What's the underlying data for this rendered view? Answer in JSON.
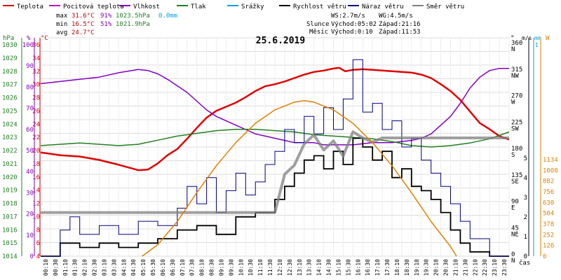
{
  "header": {
    "legend": [
      {
        "label": "Teplota",
        "color": "#e00000"
      },
      {
        "label": "Pocitová teplota",
        "color": "#c000c0"
      },
      {
        "label": "Vlhkost",
        "color": "#8000c0"
      },
      {
        "label": "Tlak",
        "color": "#208020"
      },
      {
        "label": "Srážky",
        "color": "#00a0e0"
      },
      {
        "label": "Rychlost větru",
        "color": "#000000"
      },
      {
        "label": "Náraz větru",
        "color": "#000080"
      },
      {
        "label": "Směr větru",
        "color": "#808080"
      }
    ],
    "stats": {
      "max_label": "max",
      "max_temp": "31.6°C",
      "max_hum": "91%",
      "max_press": "1023.5hPa",
      "max_rain": "0.0mm",
      "min_label": "min",
      "min_temp": "16.5°C",
      "min_hum": "51%",
      "min_press": "1021.9hPa",
      "avg_label": "avg",
      "avg_temp": "24.7°C"
    },
    "wind_info": {
      "ws": "WS:2.7m/s",
      "wg": "WG:4.5m/s"
    },
    "sun_info": {
      "label": "Slunce",
      "rise": "Východ:05:02",
      "set": "Západ:21:16"
    },
    "moon_info": {
      "label": "Měsíc",
      "rise": "Východ:0:10",
      "set": "Západ:11:53"
    }
  },
  "chart_data": {
    "type": "line",
    "title": "25.6.2019",
    "xlabel": "čas",
    "x_ticks": [
      "00:10",
      "00:30",
      "01:10",
      "01:30",
      "02:10",
      "02:30",
      "03:10",
      "03:30",
      "04:10",
      "04:30",
      "05:10",
      "05:30",
      "06:10",
      "06:30",
      "07:10",
      "07:30",
      "08:10",
      "08:30",
      "09:10",
      "09:30",
      "10:10",
      "10:30",
      "11:10",
      "11:30",
      "12:10",
      "12:30",
      "13:10",
      "13:30",
      "14:10",
      "14:30",
      "15:10",
      "15:30",
      "16:10",
      "16:30",
      "17:10",
      "17:30",
      "18:10",
      "18:30",
      "19:10",
      "19:30",
      "20:10",
      "20:30",
      "21:10",
      "21:30",
      "22:10",
      "22:30",
      "23:10",
      "23:30"
    ],
    "axes": {
      "hpa": {
        "label": "hPa",
        "color": "#208020",
        "ticks": [
          "1030",
          "1029",
          "1028",
          "1027",
          "1026",
          "1025",
          "1024",
          "1023",
          "1022",
          "1021",
          "1020",
          "1019",
          "1018",
          "1017",
          "1016",
          "1015",
          "1014"
        ],
        "ylim": [
          1014,
          1030
        ]
      },
      "percent": {
        "label": "%",
        "color": "#8000c0",
        "ticks": [
          "100",
          "90",
          "80",
          "70",
          "60",
          "50",
          "40",
          "30",
          "20",
          "10",
          "0"
        ],
        "ylim": [
          0,
          100
        ]
      },
      "celsius": {
        "label": "°C",
        "color": "#e00000",
        "ticks": [
          "36",
          "34",
          "32",
          "30",
          "28",
          "26",
          "24",
          "22",
          "20",
          "18",
          "16",
          "14",
          "12",
          "10",
          "8",
          "6",
          "4"
        ],
        "ylim": [
          4,
          36
        ]
      },
      "degrees": {
        "label": "°",
        "ticks": [
          {
            "v": 360,
            "t": "360",
            "d": "N"
          },
          {
            "v": 315,
            "t": "315",
            "d": "NW"
          },
          {
            "v": 270,
            "t": "270",
            "d": "W"
          },
          {
            "v": 225,
            "t": "225",
            "d": "SW"
          },
          {
            "v": 180,
            "t": "180",
            "d": "S"
          },
          {
            "v": 135,
            "t": "135",
            "d": "SE"
          },
          {
            "v": 90,
            "t": "90",
            "d": "E"
          },
          {
            "v": 45,
            "t": "45",
            "d": "NE"
          },
          {
            "v": 0,
            "t": "0",
            "d": "N"
          }
        ],
        "ylim": [
          0,
          360
        ]
      },
      "ms": {
        "label": "m/s",
        "ticks": [
          "5",
          "4",
          "3",
          "2",
          "1",
          "0"
        ],
        "ylim": [
          0,
          5
        ]
      },
      "mm": {
        "label": "mm",
        "color": "#00a0e0",
        "ticks": [
          "1"
        ],
        "ylim": [
          0,
          1
        ]
      },
      "wm2": {
        "label": "W",
        "color": "#e08000",
        "ticks": [
          "1134",
          "1008",
          "882",
          "756",
          "630",
          "504",
          "378",
          "252",
          "126",
          "0"
        ],
        "ylim": [
          0,
          1134
        ]
      }
    },
    "series": [
      {
        "name": "Teplota",
        "color": "#e00000",
        "axis": "celsius",
        "points": [
          [
            0,
            19.2
          ],
          [
            1,
            18.8
          ],
          [
            2,
            18.6
          ],
          [
            3,
            18.1
          ],
          [
            4,
            17.4
          ],
          [
            5,
            16.6
          ],
          [
            5.5,
            16.7
          ],
          [
            6,
            17.6
          ],
          [
            6.5,
            18.8
          ],
          [
            7,
            19.7
          ],
          [
            7.5,
            21.2
          ],
          [
            8,
            22.8
          ],
          [
            8.5,
            24.3
          ],
          [
            9,
            25.3
          ],
          [
            9.5,
            25.9
          ],
          [
            10,
            26.5
          ],
          [
            10.5,
            27.3
          ],
          [
            11,
            28.2
          ],
          [
            11.5,
            28.9
          ],
          [
            12,
            29.2
          ],
          [
            12.5,
            29.6
          ],
          [
            13,
            30.1
          ],
          [
            13.5,
            30.6
          ],
          [
            14,
            31.0
          ],
          [
            14.5,
            31.2
          ],
          [
            15,
            31.5
          ],
          [
            15.3,
            31.6
          ],
          [
            15.6,
            31.1
          ],
          [
            16,
            31.3
          ],
          [
            16.5,
            31.4
          ],
          [
            17,
            31.3
          ],
          [
            17.5,
            31.2
          ],
          [
            18,
            31.1
          ],
          [
            18.5,
            31.0
          ],
          [
            19,
            30.9
          ],
          [
            19.5,
            30.6
          ],
          [
            20,
            30.1
          ],
          [
            20.5,
            29.2
          ],
          [
            21,
            28.2
          ],
          [
            21.5,
            26.9
          ],
          [
            22,
            25.2
          ],
          [
            22.5,
            23.5
          ],
          [
            23,
            22.6
          ],
          [
            23.5,
            21.6
          ],
          [
            24,
            21.1
          ]
        ]
      },
      {
        "name": "Vlhkost",
        "color": "#8000c0",
        "axis": "percent",
        "points": [
          [
            0,
            79
          ],
          [
            1,
            80
          ],
          [
            2,
            81
          ],
          [
            3,
            82
          ],
          [
            4,
            84
          ],
          [
            5,
            85.5
          ],
          [
            5.5,
            85
          ],
          [
            6,
            83.5
          ],
          [
            6.5,
            81
          ],
          [
            7,
            78
          ],
          [
            7.5,
            75
          ],
          [
            8,
            71
          ],
          [
            8.5,
            67
          ],
          [
            9,
            64
          ],
          [
            9.5,
            62
          ],
          [
            10,
            60
          ],
          [
            10.5,
            58
          ],
          [
            11,
            56
          ],
          [
            11.5,
            55
          ],
          [
            12,
            54
          ],
          [
            12.5,
            53
          ],
          [
            13,
            52
          ],
          [
            13.5,
            52
          ],
          [
            14,
            52
          ],
          [
            14.5,
            51
          ],
          [
            15,
            51
          ],
          [
            16,
            51
          ],
          [
            17,
            52
          ],
          [
            18,
            52
          ],
          [
            19,
            53
          ],
          [
            19.5,
            54
          ],
          [
            20,
            56
          ],
          [
            20.5,
            60
          ],
          [
            21,
            64
          ],
          [
            21.5,
            70
          ],
          [
            22,
            77
          ],
          [
            22.5,
            82
          ],
          [
            23,
            85
          ],
          [
            23.5,
            86
          ],
          [
            24,
            86
          ]
        ]
      },
      {
        "name": "Tlak",
        "color": "#208020",
        "axis": "hpa",
        "points": [
          [
            0,
            1022.1
          ],
          [
            1,
            1022.2
          ],
          [
            2,
            1022.3
          ],
          [
            3,
            1022.2
          ],
          [
            4,
            1022.1
          ],
          [
            5,
            1022.2
          ],
          [
            6,
            1022.5
          ],
          [
            7,
            1022.8
          ],
          [
            8,
            1023.0
          ],
          [
            9,
            1023.2
          ],
          [
            10,
            1023.3
          ],
          [
            11,
            1023.3
          ],
          [
            12,
            1023.2
          ],
          [
            13,
            1023.1
          ],
          [
            14,
            1022.9
          ],
          [
            15,
            1022.8
          ],
          [
            16,
            1022.7
          ],
          [
            17,
            1022.6
          ],
          [
            18,
            1022.4
          ],
          [
            19,
            1022.1
          ],
          [
            20,
            1022.0
          ],
          [
            21,
            1022.1
          ],
          [
            22,
            1022.3
          ],
          [
            23,
            1022.6
          ],
          [
            24,
            1023.1
          ]
        ]
      },
      {
        "name": "Rychlost větru",
        "color": "#000000",
        "axis": "ms",
        "points": [
          [
            0,
            0
          ],
          [
            1,
            0.3
          ],
          [
            2,
            0.2
          ],
          [
            3,
            0.3
          ],
          [
            4,
            0.2
          ],
          [
            5,
            0.3
          ],
          [
            6,
            0.4
          ],
          [
            7,
            0.6
          ],
          [
            8,
            0.7
          ],
          [
            9,
            0.5
          ],
          [
            10,
            0.9
          ],
          [
            11,
            1.0
          ],
          [
            12,
            1.3
          ],
          [
            12.5,
            1.6
          ],
          [
            13,
            1.9
          ],
          [
            13.5,
            2.2
          ],
          [
            14,
            2.3
          ],
          [
            14.5,
            2.0
          ],
          [
            15,
            2.4
          ],
          [
            15.5,
            2.1
          ],
          [
            16,
            2.7
          ],
          [
            16.5,
            2.5
          ],
          [
            17,
            2.2
          ],
          [
            17.5,
            2.4
          ],
          [
            18,
            1.8
          ],
          [
            18.5,
            2.0
          ],
          [
            19,
            1.6
          ],
          [
            19.5,
            1.5
          ],
          [
            20,
            1.3
          ],
          [
            20.5,
            1.0
          ],
          [
            21,
            0.6
          ],
          [
            21.5,
            0.3
          ],
          [
            22,
            0.1
          ],
          [
            23,
            0
          ],
          [
            24,
            0
          ]
        ]
      },
      {
        "name": "Náraz větru",
        "color": "#000080",
        "axis": "ms",
        "points": [
          [
            0,
            0
          ],
          [
            1,
            0.6
          ],
          [
            1.5,
            0.9
          ],
          [
            2,
            0.5
          ],
          [
            3,
            0.7
          ],
          [
            4,
            0.5
          ],
          [
            5,
            0.8
          ],
          [
            6,
            0.7
          ],
          [
            7,
            1.1
          ],
          [
            7.5,
            1.6
          ],
          [
            8,
            1.2
          ],
          [
            8.5,
            1.8
          ],
          [
            9,
            1.0
          ],
          [
            9.5,
            1.5
          ],
          [
            10,
            1.9
          ],
          [
            10.5,
            1.4
          ],
          [
            11,
            1.7
          ],
          [
            11.5,
            2.1
          ],
          [
            12,
            2.4
          ],
          [
            12.5,
            2.9
          ],
          [
            13,
            2.6
          ],
          [
            13.5,
            3.2
          ],
          [
            14,
            2.8
          ],
          [
            14.5,
            3.4
          ],
          [
            15,
            2.9
          ],
          [
            15.5,
            3.6
          ],
          [
            16,
            4.5
          ],
          [
            16.5,
            3.3
          ],
          [
            17,
            3.5
          ],
          [
            17.5,
            2.9
          ],
          [
            18,
            3.1
          ],
          [
            18.5,
            2.5
          ],
          [
            19,
            2.7
          ],
          [
            19.5,
            2.2
          ],
          [
            20,
            1.9
          ],
          [
            20.5,
            1.6
          ],
          [
            21,
            1.2
          ],
          [
            21.5,
            0.8
          ],
          [
            22,
            0.4
          ],
          [
            23,
            0
          ],
          [
            24,
            0
          ]
        ]
      },
      {
        "name": "Směr větru",
        "color": "#808080",
        "axis": "degrees",
        "points": [
          [
            0,
            72
          ],
          [
            2,
            72
          ],
          [
            4,
            72
          ],
          [
            6,
            72
          ],
          [
            8,
            72
          ],
          [
            10,
            72
          ],
          [
            12,
            72
          ],
          [
            12.5,
            135
          ],
          [
            13,
            150
          ],
          [
            13.5,
            185
          ],
          [
            14,
            200
          ],
          [
            14.5,
            175
          ],
          [
            15,
            190
          ],
          [
            15.5,
            165
          ],
          [
            16,
            205
          ],
          [
            16.5,
            195
          ],
          [
            17,
            188
          ],
          [
            17.5,
            195
          ],
          [
            18,
            195
          ],
          [
            19,
            195
          ],
          [
            20,
            195
          ],
          [
            21,
            195
          ],
          [
            22,
            195
          ],
          [
            23,
            195
          ],
          [
            24,
            195
          ]
        ]
      },
      {
        "name": "Solar",
        "color": "#e08000",
        "axis": "wm2",
        "points": [
          [
            5.2,
            0
          ],
          [
            6,
            60
          ],
          [
            7,
            180
          ],
          [
            8,
            330
          ],
          [
            9,
            470
          ],
          [
            10,
            590
          ],
          [
            11,
            690
          ],
          [
            12,
            760
          ],
          [
            13,
            800
          ],
          [
            13.5,
            808
          ],
          [
            14,
            800
          ],
          [
            15,
            760
          ],
          [
            16,
            690
          ],
          [
            17,
            590
          ],
          [
            18,
            470
          ],
          [
            19,
            330
          ],
          [
            20,
            180
          ],
          [
            21,
            50
          ],
          [
            21.3,
            0
          ]
        ]
      }
    ]
  }
}
